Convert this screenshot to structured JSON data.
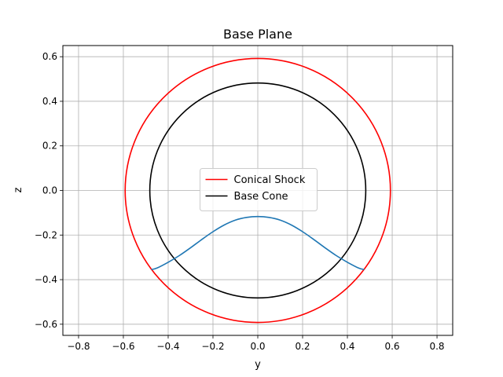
{
  "chart_data": {
    "type": "line",
    "title": "Base Plane",
    "xlabel": "y",
    "ylabel": "z",
    "xlim": [
      -0.87,
      0.87
    ],
    "ylim": [
      -0.65,
      0.65
    ],
    "xticks": [
      -0.8,
      -0.6,
      -0.4,
      -0.2,
      0.0,
      0.2,
      0.4,
      0.6,
      0.8
    ],
    "yticks": [
      -0.6,
      -0.4,
      -0.2,
      0.0,
      0.2,
      0.4,
      0.6
    ],
    "xtick_labels": [
      "−0.8",
      "−0.6",
      "−0.4",
      "−0.2",
      "0.0",
      "0.2",
      "0.4",
      "0.6",
      "0.8"
    ],
    "ytick_labels": [
      "−0.6",
      "−0.4",
      "−0.2",
      "0.0",
      "0.2",
      "0.4",
      "0.6"
    ],
    "grid": true,
    "equal_aspect": true,
    "legend": {
      "position": "center",
      "entries": [
        "Conical Shock",
        "Base Cone"
      ]
    },
    "series": [
      {
        "name": "Conical Shock",
        "shape": "circle",
        "center": [
          0,
          0
        ],
        "radius": 0.592,
        "color": "#ff0000"
      },
      {
        "name": "Base Cone",
        "shape": "circle",
        "center": [
          0,
          0
        ],
        "radius": 0.482,
        "color": "#000000"
      },
      {
        "name": "",
        "shape": "curve",
        "color": "#1f77b4",
        "x": [
          -0.475,
          -0.45,
          -0.4,
          -0.35,
          -0.3,
          -0.25,
          -0.2,
          -0.15,
          -0.1,
          -0.05,
          0.0,
          0.05,
          0.1,
          0.15,
          0.2,
          0.25,
          0.3,
          0.35,
          0.4,
          0.45,
          0.475
        ],
        "y": [
          -0.355,
          -0.348,
          -0.322,
          -0.292,
          -0.257,
          -0.22,
          -0.185,
          -0.155,
          -0.133,
          -0.121,
          -0.117,
          -0.121,
          -0.133,
          -0.155,
          -0.185,
          -0.22,
          -0.257,
          -0.292,
          -0.322,
          -0.348,
          -0.355
        ]
      }
    ]
  }
}
